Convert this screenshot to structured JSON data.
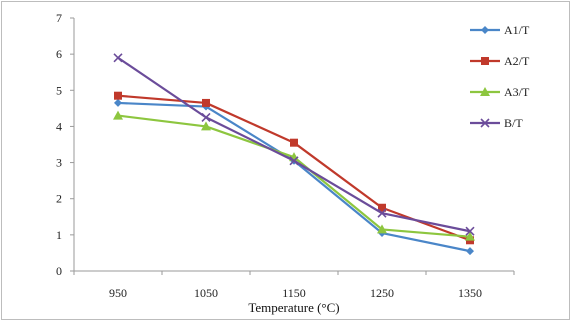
{
  "chart_data": {
    "type": "line",
    "title": "",
    "xlabel": "Temperature (°C)",
    "ylabel": "",
    "categories": [
      "950",
      "1050",
      "1150",
      "1250",
      "1350"
    ],
    "ylim": [
      0,
      7
    ],
    "yticks": [
      "0",
      "1",
      "2",
      "3",
      "4",
      "5",
      "6",
      "7"
    ],
    "grid": false,
    "legend_position": "right",
    "series": [
      {
        "name": "A1/T",
        "color": "#4a86c8",
        "marker": "diamond",
        "values": [
          4.65,
          4.55,
          3.05,
          1.05,
          0.55
        ]
      },
      {
        "name": "A2/T",
        "color": "#c0392b",
        "marker": "square",
        "values": [
          4.85,
          4.65,
          3.55,
          1.75,
          0.85
        ]
      },
      {
        "name": "A3/T",
        "color": "#8dc63f",
        "marker": "triangle",
        "values": [
          4.3,
          4.0,
          3.15,
          1.15,
          0.95
        ]
      },
      {
        "name": "B/T",
        "color": "#6b4c9a",
        "marker": "x",
        "values": [
          5.9,
          4.25,
          3.05,
          1.6,
          1.1
        ]
      }
    ]
  }
}
